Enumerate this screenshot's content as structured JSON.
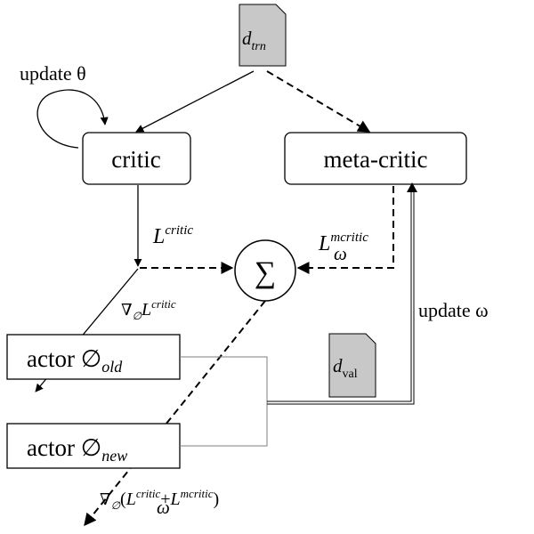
{
  "nodes": {
    "d_trn": {
      "base": "d",
      "sub": "trn",
      "fill": "#c8c8c8"
    },
    "d_val": {
      "base": "d",
      "sub": "val",
      "fill": "#c8c8c8"
    },
    "critic": {
      "label": "critic"
    },
    "meta_critic": {
      "label": "meta-critic"
    },
    "sum": {
      "symbol": "∑"
    },
    "actor_old": {
      "label": "actor ∅",
      "sub": "old"
    },
    "actor_new": {
      "label": "actor ∅",
      "sub": "new"
    }
  },
  "labels": {
    "update_theta": "update θ",
    "update_omega": "update ω",
    "l_critic": {
      "base": "L",
      "sup": "critic"
    },
    "l_mcritic": {
      "base": "L",
      "sup": "mcritic",
      "sub": "ω"
    },
    "grad_critic": {
      "nabla": "∇",
      "sub": "∅",
      "base": "L",
      "sup": "critic"
    },
    "grad_total": {
      "nabla": "∇",
      "sub": "∅",
      "open": "(",
      "base1": "L",
      "sup1": "critic",
      "plus": "+",
      "base2": "L",
      "sup2": "mcritic",
      "sub2": "ω",
      "close": ")"
    }
  },
  "colors": {
    "stroke": "#000000",
    "doc_fill": "#c8c8c8",
    "bracket": "#7f7f7f"
  }
}
